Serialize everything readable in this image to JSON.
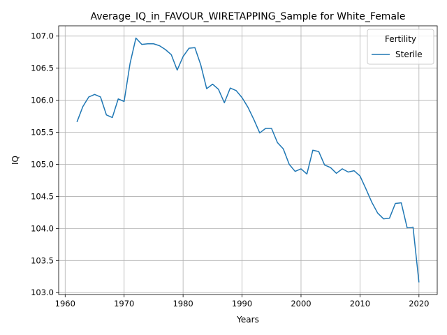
{
  "chart_data": {
    "type": "line",
    "title": "Average_IQ_in_FAVOUR_WIRETAPPING_Sample for White_Female",
    "xlabel": "Years",
    "ylabel": "IQ",
    "xlim": [
      1958.9,
      2023.1
    ],
    "ylim": [
      102.97,
      107.16
    ],
    "xticks": [
      1960,
      1970,
      1980,
      1990,
      2000,
      2010,
      2020
    ],
    "yticks": [
      103.0,
      103.5,
      104.0,
      104.5,
      105.0,
      105.5,
      106.0,
      106.5,
      107.0
    ],
    "grid": true,
    "legend": {
      "title": "Fertility",
      "placement": "top-right"
    },
    "series": [
      {
        "name": "Sterile",
        "color": "#1f77b4",
        "x": [
          1962,
          1963,
          1964,
          1965,
          1966,
          1967,
          1968,
          1969,
          1970,
          1971,
          1972,
          1973,
          1974,
          1975,
          1976,
          1977,
          1978,
          1979,
          1980,
          1981,
          1982,
          1983,
          1984,
          1985,
          1986,
          1987,
          1988,
          1989,
          1990,
          1991,
          1992,
          1993,
          1994,
          1995,
          1996,
          1997,
          1998,
          1999,
          2000,
          2001,
          2002,
          2003,
          2004,
          2005,
          2006,
          2007,
          2008,
          2009,
          2010,
          2011,
          2012,
          2013,
          2014,
          2015,
          2016,
          2017,
          2018,
          2019,
          2020
        ],
        "values": [
          105.66,
          105.9,
          106.05,
          106.09,
          106.05,
          105.77,
          105.73,
          106.02,
          105.98,
          106.57,
          106.97,
          106.87,
          106.88,
          106.88,
          106.85,
          106.79,
          106.71,
          106.47,
          106.68,
          106.81,
          106.82,
          106.55,
          106.18,
          106.25,
          106.17,
          105.96,
          106.19,
          106.15,
          106.04,
          105.89,
          105.7,
          105.49,
          105.56,
          105.56,
          105.34,
          105.24,
          105.0,
          104.89,
          104.93,
          104.85,
          105.22,
          105.2,
          104.99,
          104.95,
          104.86,
          104.93,
          104.88,
          104.9,
          104.82,
          104.62,
          104.41,
          104.24,
          104.15,
          104.16,
          104.39,
          104.4,
          104.01,
          104.02,
          103.16
        ]
      }
    ]
  }
}
